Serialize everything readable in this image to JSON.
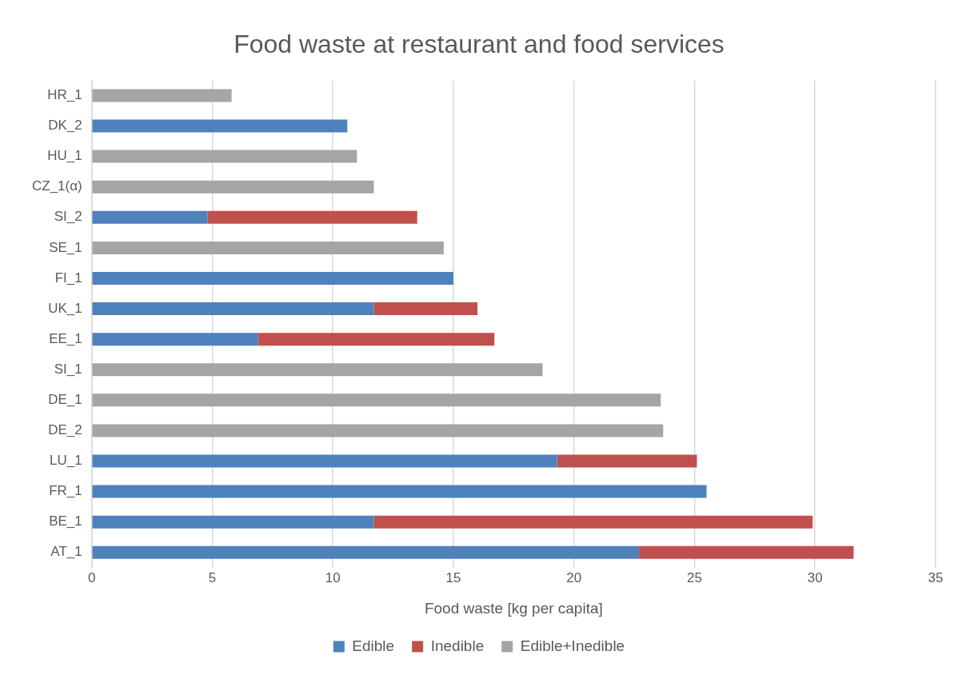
{
  "chart_data": {
    "type": "bar",
    "orientation": "horizontal",
    "stacked": true,
    "title": "Food waste at restaurant and food services",
    "xlabel": "Food waste [kg per capita]",
    "categories": [
      "HR_1",
      "DK_2",
      "HU_1",
      "CZ_1(α)",
      "SI_2",
      "SE_1",
      "FI_1",
      "UK_1",
      "EE_1",
      "SI_1",
      "DE_1",
      "DE_2",
      "LU_1",
      "FR_1",
      "BE_1",
      "AT_1"
    ],
    "series": [
      {
        "name": "Edible",
        "color": "#4f81bd",
        "values": [
          null,
          10.6,
          null,
          null,
          4.8,
          null,
          15.0,
          11.7,
          6.9,
          null,
          null,
          null,
          19.3,
          25.5,
          11.7,
          22.7
        ]
      },
      {
        "name": "Inedible",
        "color": "#c0504d",
        "values": [
          null,
          null,
          null,
          null,
          8.7,
          null,
          null,
          4.3,
          9.8,
          null,
          null,
          null,
          5.8,
          null,
          18.2,
          8.9
        ]
      },
      {
        "name": "Edible+Inedible",
        "color": "#a5a5a5",
        "values": [
          5.8,
          null,
          11.0,
          11.7,
          null,
          14.6,
          null,
          null,
          null,
          18.7,
          23.6,
          23.7,
          null,
          null,
          null,
          null
        ]
      }
    ],
    "xlim": [
      0,
      35
    ],
    "xticks": [
      0,
      5,
      10,
      15,
      20,
      25,
      30,
      35
    ],
    "grid": "x",
    "legend": "bottom"
  }
}
